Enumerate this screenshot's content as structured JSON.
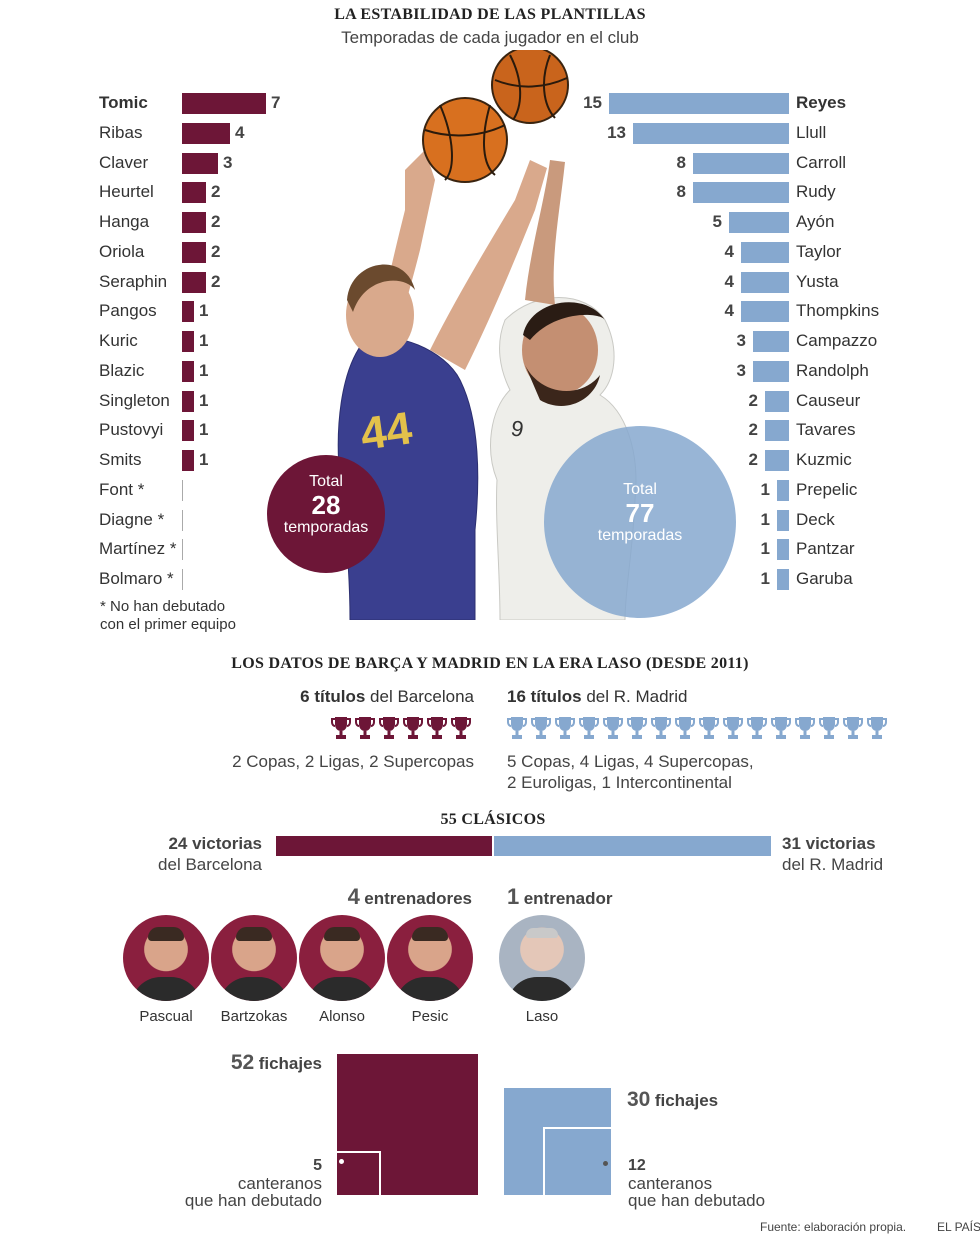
{
  "header": {
    "title": "LA ESTABILIDAD DE LAS PLANTILLAS",
    "subtitle": "Temporadas de cada jugador en el club"
  },
  "colors": {
    "barcelona": "#6d1637",
    "madrid": "#86a8cf"
  },
  "chart_data": [
    {
      "type": "bar",
      "team": "Barcelona",
      "orientation": "horizontal",
      "categories": [
        "Tomic",
        "Ribas",
        "Claver",
        "Heurtel",
        "Hanga",
        "Oriola",
        "Seraphin",
        "Pangos",
        "Kuric",
        "Blazic",
        "Singleton",
        "Pustovyi",
        "Smits",
        "Font *",
        "Diagne *",
        "Martínez *",
        "Bolmaro *"
      ],
      "values": [
        7,
        4,
        3,
        2,
        2,
        2,
        2,
        1,
        1,
        1,
        1,
        1,
        1,
        0,
        0,
        0,
        0
      ],
      "value_labels": [
        "7",
        "4",
        "3",
        "2",
        "2",
        "2",
        "2",
        "1",
        "1",
        "1",
        "1",
        "1",
        "1",
        "",
        "",
        "",
        ""
      ],
      "total": {
        "label_top": "Total",
        "value": "28",
        "label_bottom": "temporadas"
      },
      "note": [
        "* No han debutado",
        "con el primer equipo"
      ]
    },
    {
      "type": "bar",
      "team": "Real Madrid",
      "orientation": "horizontal",
      "categories": [
        "Reyes",
        "Llull",
        "Carroll",
        "Rudy",
        "Ayón",
        "Taylor",
        "Yusta",
        "Thompkins",
        "Campazzo",
        "Randolph",
        "Causeur",
        "Tavares",
        "Kuzmic",
        "Prepelic",
        "Deck",
        "Pantzar",
        "Garuba"
      ],
      "values": [
        15,
        13,
        8,
        8,
        5,
        4,
        4,
        4,
        3,
        3,
        2,
        2,
        2,
        1,
        1,
        1,
        1
      ],
      "value_labels": [
        "15",
        "13",
        "8",
        "8",
        "5",
        "4",
        "4",
        "4",
        "3",
        "3",
        "2",
        "2",
        "2",
        "1",
        "1",
        "1",
        "1"
      ],
      "total": {
        "label_top": "Total",
        "value": "77",
        "label_bottom": "temporadas"
      }
    },
    {
      "type": "bar",
      "title": "55 CLÁSICOS",
      "categories": [
        "del Barcelona",
        "del R. Madrid"
      ],
      "values": [
        24,
        31
      ],
      "labels": [
        {
          "num": "24 victorias",
          "sub": "del Barcelona"
        },
        {
          "num": "31 victorias",
          "sub": "del R. Madrid"
        }
      ]
    },
    {
      "type": "bar",
      "title": "fichajes",
      "teams": [
        {
          "total": 52,
          "total_label": "52",
          "word": "fichajes",
          "canteranos": 5,
          "can_label": "5",
          "can_text": [
            "canteranos",
            "que han debutado"
          ]
        },
        {
          "total": 30,
          "total_label": "30",
          "word": "fichajes",
          "canteranos": 12,
          "can_label": "12",
          "can_text": [
            "canteranos",
            "que han debutado"
          ]
        }
      ]
    }
  ],
  "datos": {
    "title": "LOS DATOS DE BARÇA Y MADRID EN LA ERA LASO (DESDE 2011)",
    "barca_titles": {
      "num": "6 títulos",
      "rest": " del Barcelona",
      "count": 6,
      "detail": "2 Copas, 2 Ligas, 2 Supercopas"
    },
    "madrid_titles": {
      "num": "16 títulos",
      "rest": " del R. Madrid",
      "count": 16,
      "detail1": "5 Copas, 4 Ligas, 4 Supercopas,",
      "detail2": "2 Euroligas, 1 Intercontinental"
    }
  },
  "coaches": {
    "barca": {
      "num": "4",
      "word": "entrenadores",
      "names": [
        "Pascual",
        "Bartzokas",
        "Alonso",
        "Pesic"
      ]
    },
    "madrid": {
      "num": "1",
      "word": "entrenador",
      "names": [
        "Laso"
      ]
    }
  },
  "footer": {
    "source": "Fuente: elaboración propia.",
    "brand": "EL PAÍS"
  }
}
